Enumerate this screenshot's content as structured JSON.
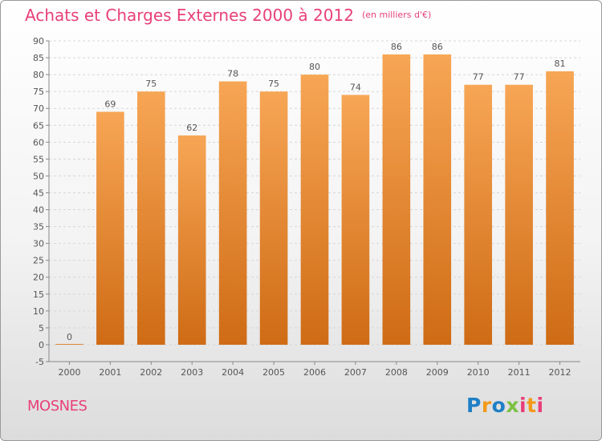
{
  "header": {
    "title": "Achats et Charges Externes 2000 à 2012",
    "unit": "(en milliers d'€)"
  },
  "footer": {
    "commune": "MOSNES",
    "brand": "Proxiti"
  },
  "colors": {
    "title": "#e8407a",
    "bar_light": "#f7a655",
    "bar_dark": "#cf6b15",
    "grid": "#d6d6d6"
  },
  "chart_data": {
    "type": "bar",
    "title": "Achats et Charges Externes 2000 à 2012",
    "subtitle": "(en milliers d'€)",
    "xlabel": "",
    "ylabel": "",
    "categories": [
      "2000",
      "2001",
      "2002",
      "2003",
      "2004",
      "2005",
      "2006",
      "2007",
      "2008",
      "2009",
      "2010",
      "2011",
      "2012"
    ],
    "values": [
      0,
      69,
      75,
      62,
      78,
      75,
      80,
      74,
      86,
      86,
      77,
      77,
      81
    ],
    "data_labels": [
      "0",
      "69",
      "75",
      "62",
      "78",
      "75",
      "80",
      "74",
      "86",
      "86",
      "77",
      "77",
      "81"
    ],
    "ylim": [
      -5,
      90
    ],
    "yticks": [
      -5,
      0,
      5,
      10,
      15,
      20,
      25,
      30,
      35,
      40,
      45,
      50,
      55,
      60,
      65,
      70,
      75,
      80,
      85,
      90
    ],
    "grid": true,
    "legend": "none"
  }
}
